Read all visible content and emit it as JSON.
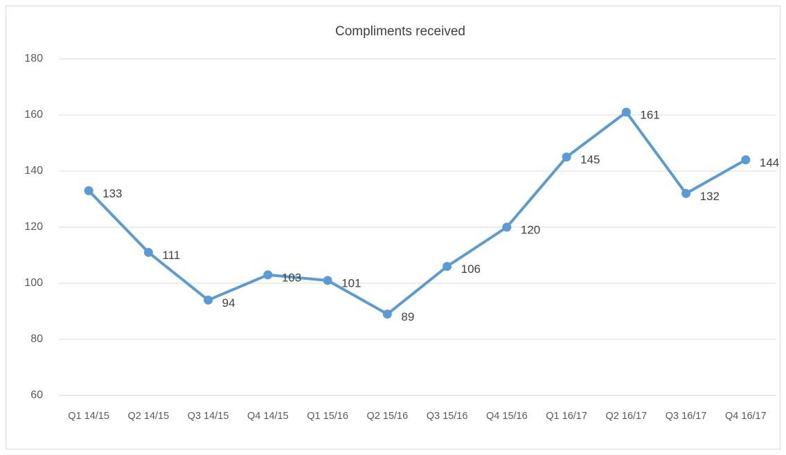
{
  "chart_data": {
    "type": "line",
    "title": "Compliments received",
    "categories": [
      "Q1 14/15",
      "Q2 14/15",
      "Q3 14/15",
      "Q4 14/15",
      "Q1 15/16",
      "Q2 15/16",
      "Q3 15/16",
      "Q4 15/16",
      "Q1 16/17",
      "Q2 16/17",
      "Q3 16/17",
      "Q4 16/17"
    ],
    "series": [
      {
        "name": "Compliments received",
        "color": "#5b9bd5",
        "values": [
          133,
          111,
          94,
          103,
          101,
          89,
          106,
          120,
          145,
          161,
          132,
          144
        ]
      }
    ],
    "ylim": [
      60,
      180
    ],
    "yticks": [
      60,
      80,
      100,
      120,
      140,
      160,
      180
    ],
    "grid": true,
    "data_labels": true
  }
}
